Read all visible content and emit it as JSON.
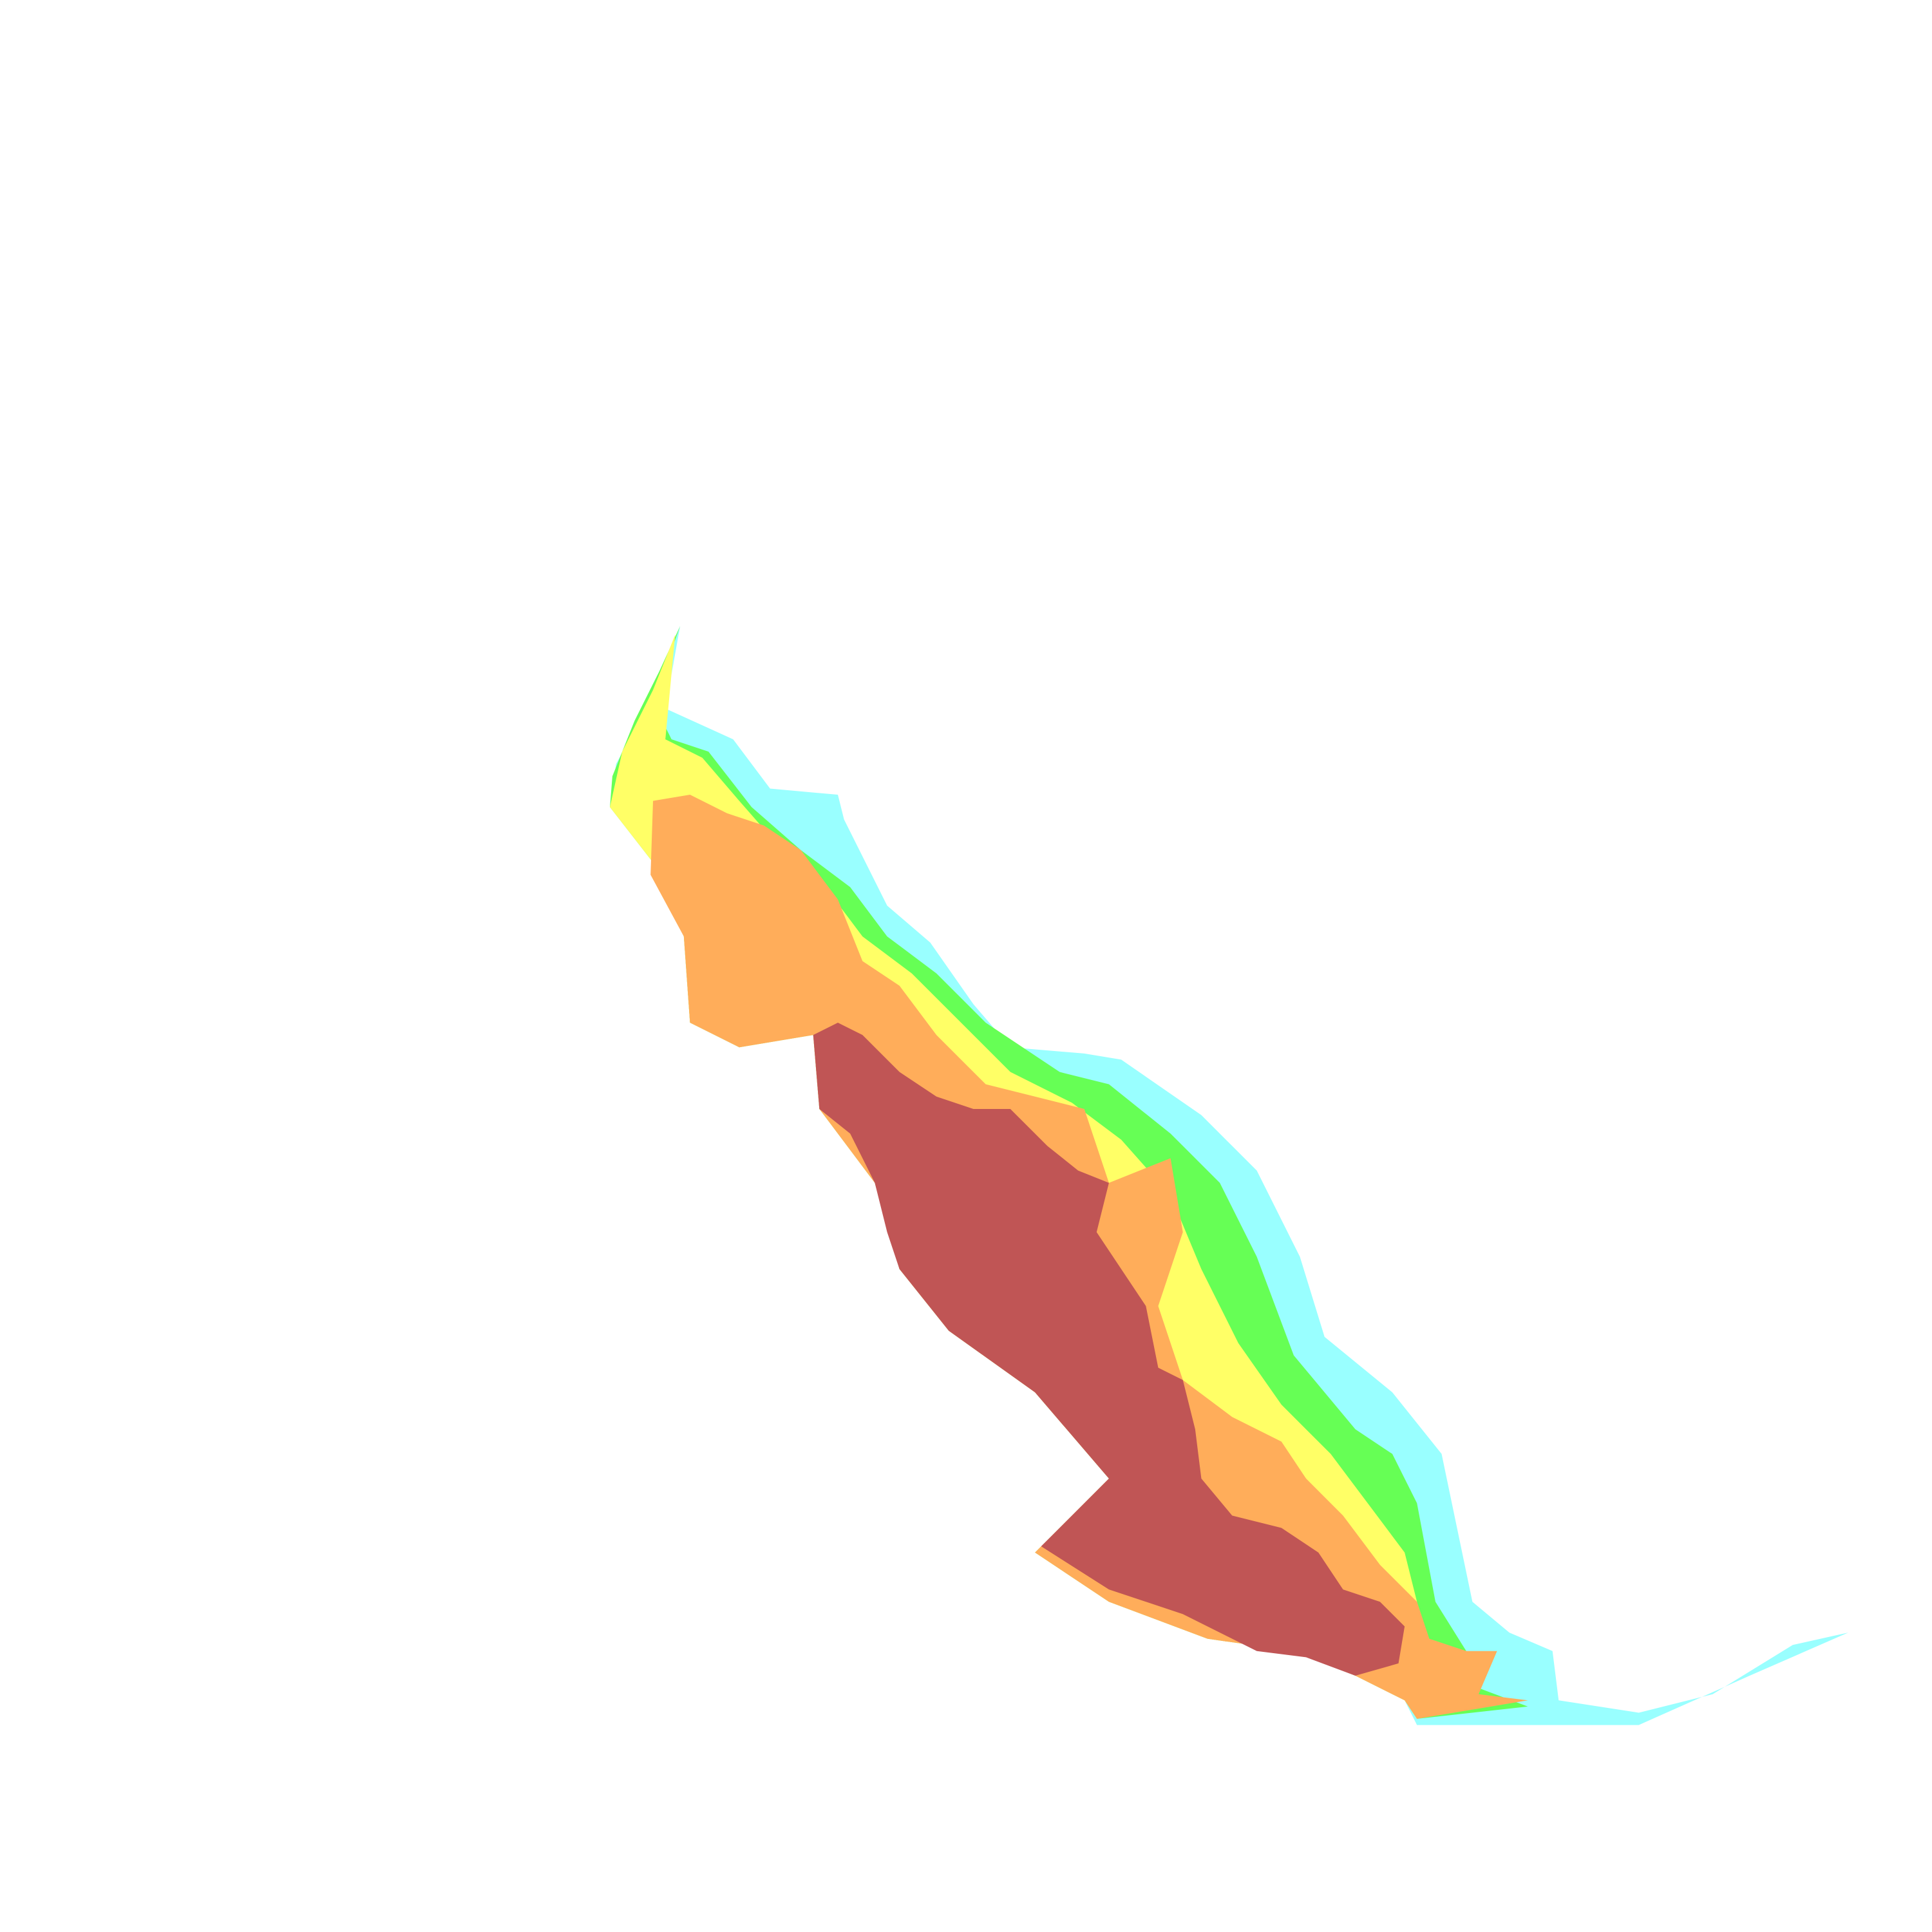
{
  "map": {
    "colors": {
      "zone_1": "#99ffff",
      "zone_2": "#66ff55",
      "zone_3": "#ffff66",
      "zone_4": "#ffad5a",
      "zone_5": "#c05555"
    }
  }
}
